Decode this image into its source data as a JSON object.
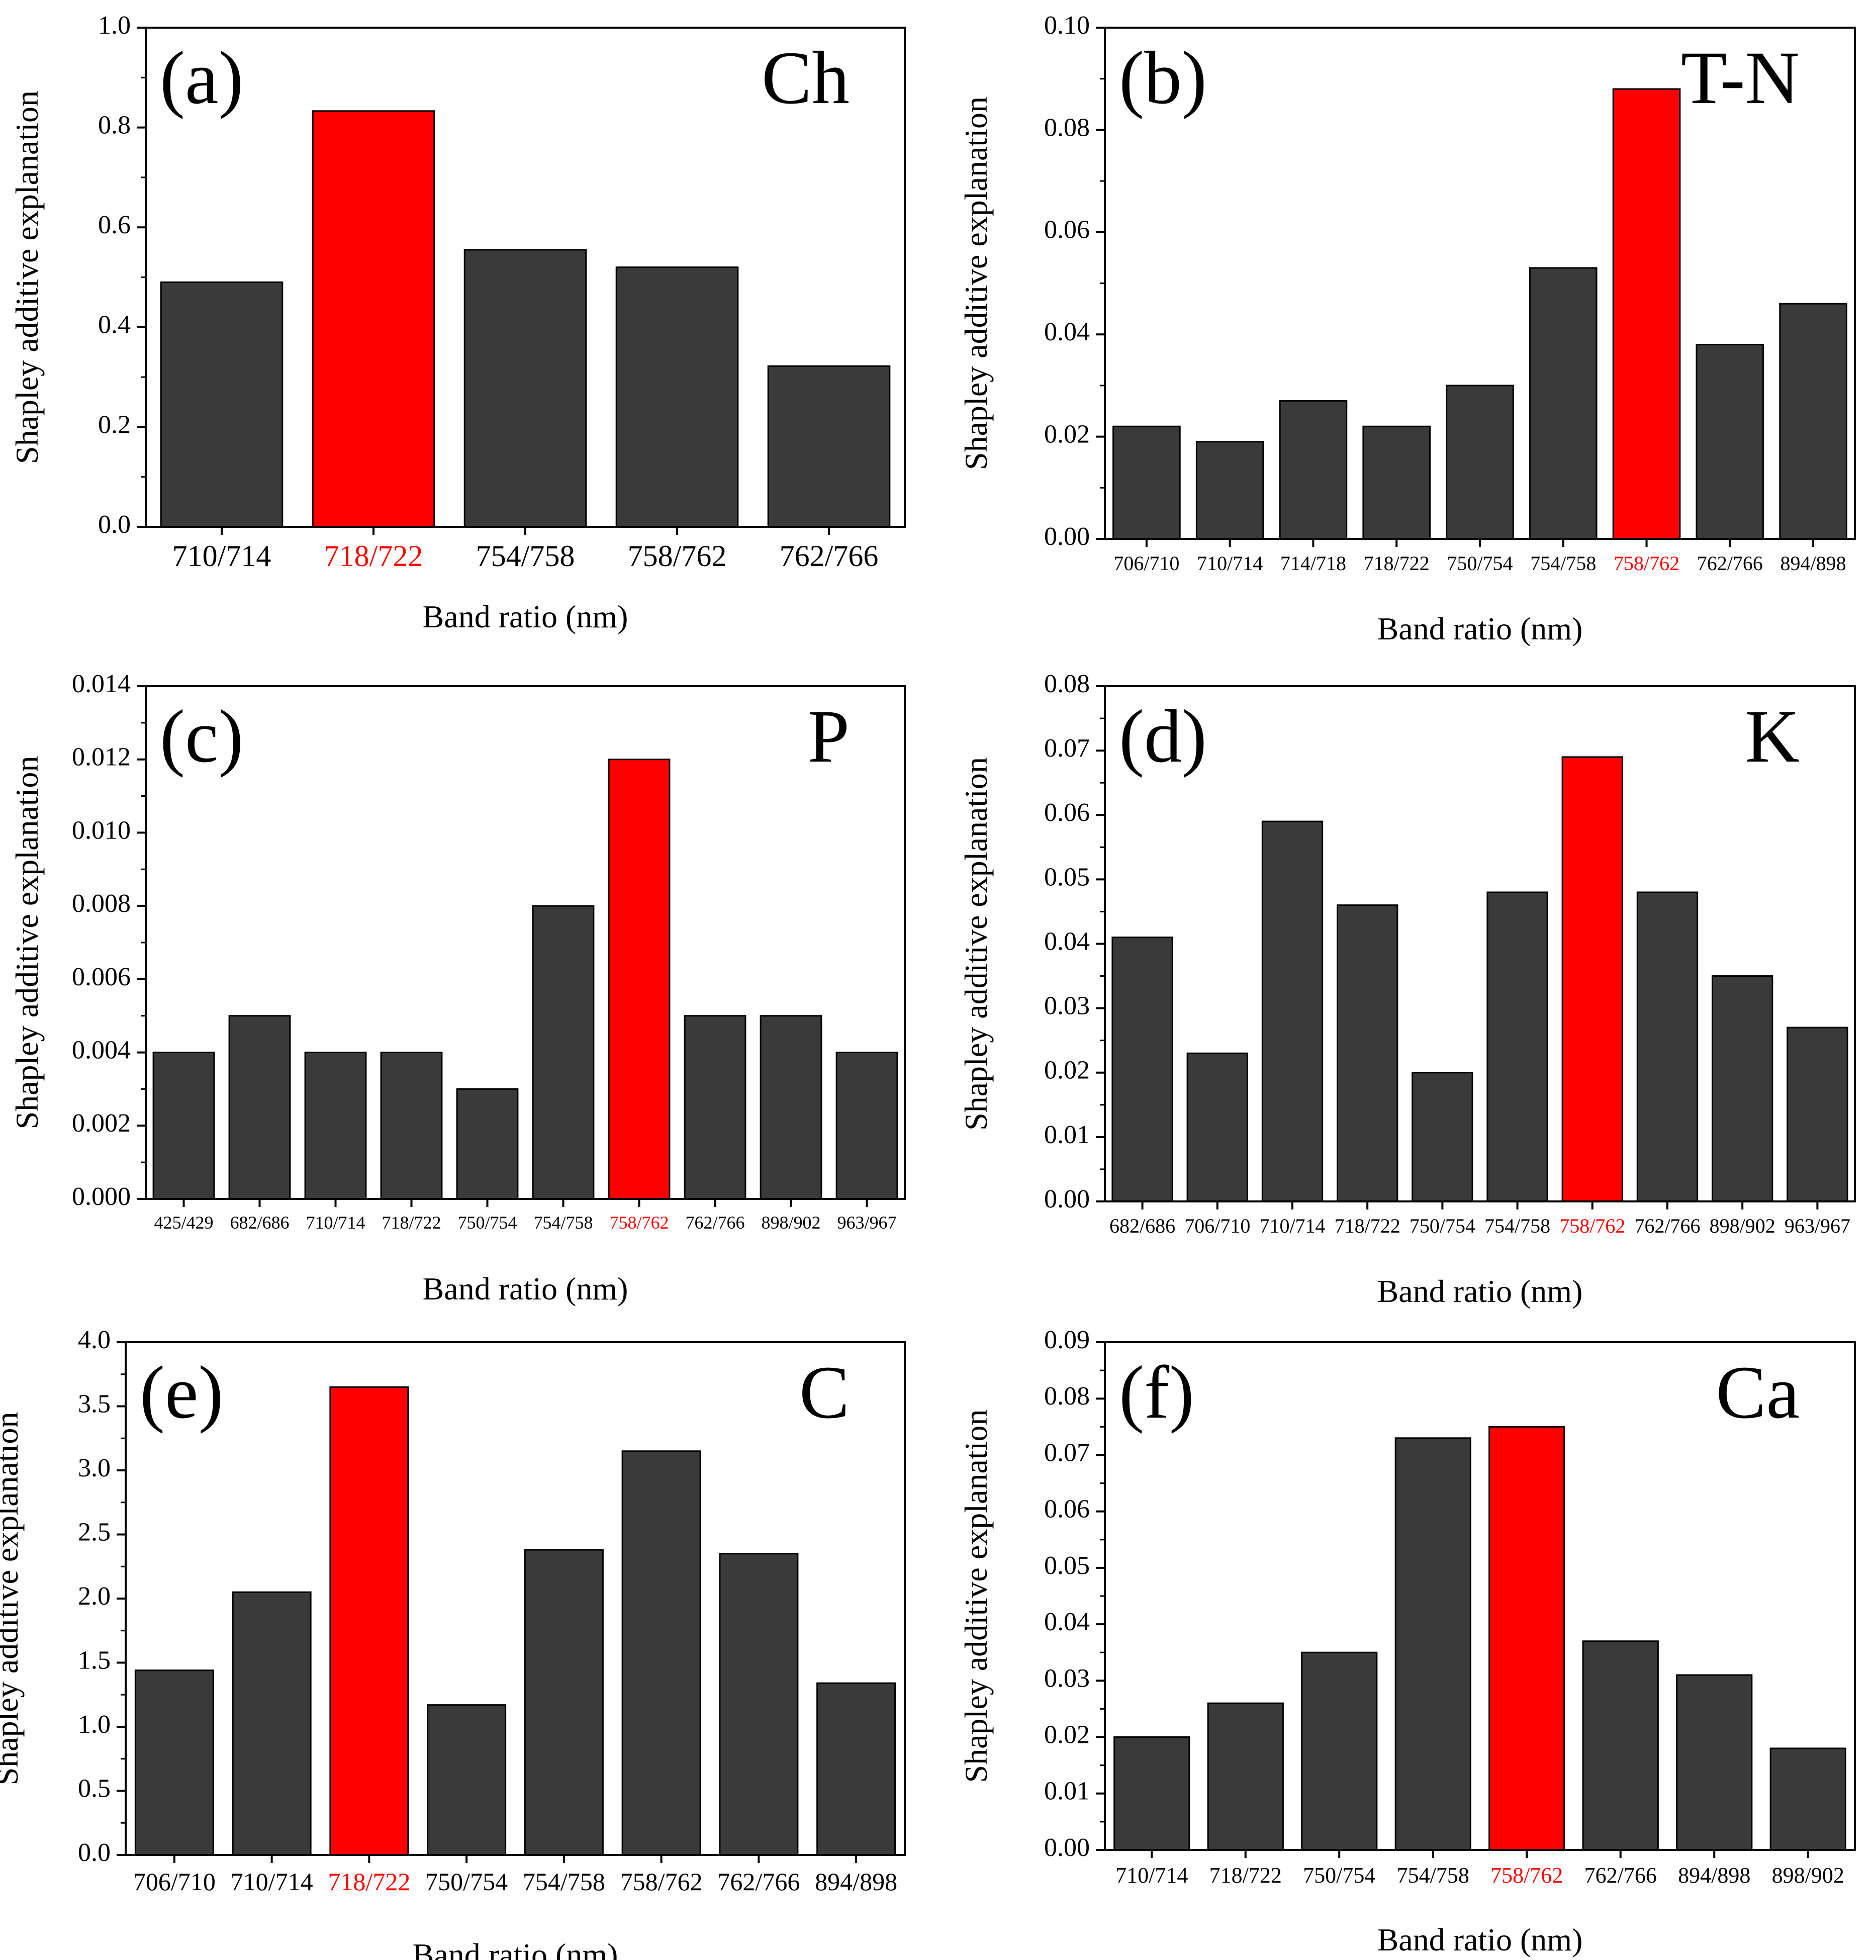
{
  "figure": {
    "bar_color": "#3a3a3a",
    "highlight_color": "#ff0000",
    "axis_color": "#000000"
  },
  "chart_data": [
    {
      "type": "bar",
      "panel": "(a)",
      "element": "Ch",
      "categories": [
        "710/714",
        "718/722",
        "754/758",
        "758/762",
        "762/766"
      ],
      "values": [
        0.49,
        0.833,
        0.555,
        0.52,
        0.322
      ],
      "highlight": "718/722",
      "ylim": [
        0,
        1.0
      ],
      "yticks": [
        "0.0",
        "0.2",
        "0.4",
        "0.6",
        "0.8",
        "1.0"
      ],
      "xlabel": "Band ratio (nm)",
      "ylabel": "Shapley additive explanation"
    },
    {
      "type": "bar",
      "panel": "(b)",
      "element": "T-N",
      "categories": [
        "706/710",
        "710/714",
        "714/718",
        "718/722",
        "750/754",
        "754/758",
        "758/762",
        "762/766",
        "894/898"
      ],
      "values": [
        0.022,
        0.019,
        0.027,
        0.022,
        0.03,
        0.053,
        0.088,
        0.038,
        0.046
      ],
      "highlight": "758/762",
      "ylim": [
        0,
        0.1
      ],
      "yticks": [
        "0.00",
        "0.02",
        "0.04",
        "0.06",
        "0.08",
        "0.10"
      ],
      "xlabel": "Band ratio (nm)",
      "ylabel": "Shapley additive explanation"
    },
    {
      "type": "bar",
      "panel": "(c)",
      "element": "P",
      "categories": [
        "425/429",
        "682/686",
        "710/714",
        "718/722",
        "750/754",
        "754/758",
        "758/762",
        "762/766",
        "898/902",
        "963/967"
      ],
      "values": [
        0.004,
        0.005,
        0.004,
        0.004,
        0.003,
        0.008,
        0.012,
        0.005,
        0.005,
        0.004
      ],
      "highlight": "758/762",
      "ylim": [
        0,
        0.014
      ],
      "yticks": [
        "0.000",
        "0.002",
        "0.004",
        "0.006",
        "0.008",
        "0.010",
        "0.012",
        "0.014"
      ],
      "xlabel": "Band ratio (nm)",
      "ylabel": "Shapley additive explanation"
    },
    {
      "type": "bar",
      "panel": "(d)",
      "element": "K",
      "categories": [
        "682/686",
        "706/710",
        "710/714",
        "718/722",
        "750/754",
        "754/758",
        "758/762",
        "762/766",
        "898/902",
        "963/967"
      ],
      "values": [
        0.041,
        0.023,
        0.059,
        0.046,
        0.02,
        0.048,
        0.069,
        0.048,
        0.035,
        0.027
      ],
      "highlight": "758/762",
      "ylim": [
        0,
        0.08
      ],
      "yticks": [
        "0.00",
        "0.01",
        "0.02",
        "0.03",
        "0.04",
        "0.05",
        "0.06",
        "0.07",
        "0.08"
      ],
      "xlabel": "Band ratio (nm)",
      "ylabel": "Shapley additive explanation"
    },
    {
      "type": "bar",
      "panel": "(e)",
      "element": "C",
      "categories": [
        "706/710",
        "710/714",
        "718/722",
        "750/754",
        "754/758",
        "758/762",
        "762/766",
        "894/898"
      ],
      "values": [
        1.44,
        2.05,
        3.65,
        1.17,
        2.38,
        3.15,
        2.35,
        1.34
      ],
      "highlight": "718/722",
      "ylim": [
        0,
        4.0
      ],
      "yticks": [
        "0.0",
        "0.5",
        "1.0",
        "1.5",
        "2.0",
        "2.5",
        "3.0",
        "3.5",
        "4.0"
      ],
      "xlabel": "Band ratio (nm)",
      "ylabel": "Shapley additive explanation"
    },
    {
      "type": "bar",
      "panel": "(f)",
      "element": "Ca",
      "categories": [
        "710/714",
        "718/722",
        "750/754",
        "754/758",
        "758/762",
        "762/766",
        "894/898",
        "898/902"
      ],
      "values": [
        0.02,
        0.026,
        0.035,
        0.073,
        0.075,
        0.037,
        0.031,
        0.018
      ],
      "highlight": "758/762",
      "ylim": [
        0,
        0.09
      ],
      "yticks": [
        "0.00",
        "0.01",
        "0.02",
        "0.03",
        "0.04",
        "0.05",
        "0.06",
        "0.07",
        "0.08",
        "0.09"
      ],
      "xlabel": "Band ratio (nm)",
      "ylabel": "Shapley additive explanation"
    }
  ]
}
